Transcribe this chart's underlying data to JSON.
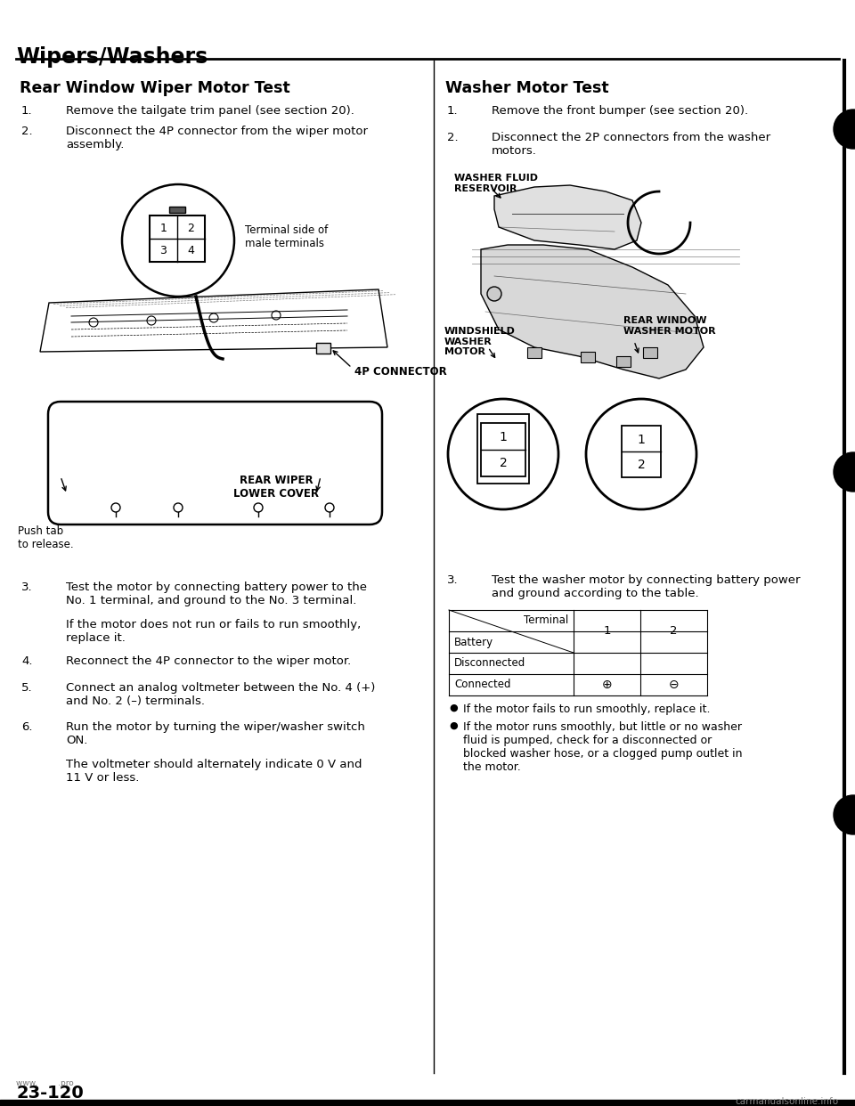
{
  "page_title": "Wipers/Washers",
  "left_section_title": "Rear Window Wiper Motor Test",
  "right_section_title": "Washer Motor Test",
  "left_step1": "Remove the tailgate trim panel (see section 20).",
  "left_step2_line1": "Disconnect the 4P connector from the wiper motor",
  "left_step2_line2": "assembly.",
  "left_step3_line1": "Test the motor by connecting battery power to the",
  "left_step3_line2": "No. 1 terminal, and ground to the No. 3 terminal.",
  "left_step3b_line1": "If the motor does not run or fails to run smoothly,",
  "left_step3b_line2": "replace it.",
  "left_step4": "Reconnect the 4P connector to the wiper motor.",
  "left_step5_line1": "Connect an analog voltmeter between the No. 4 (+)",
  "left_step5_line2": "and No. 2 (–) terminals.",
  "left_step6_line1": "Run the motor by turning the wiper/washer switch",
  "left_step6_line2": "ON.",
  "left_step6b_line1": "The voltmeter should alternately indicate 0 V and",
  "left_step6b_line2": "11 V or less.",
  "right_step1": "Remove the front bumper (see section 20).",
  "right_step2_line1": "Disconnect the 2P connectors from the washer",
  "right_step2_line2": "motors.",
  "right_step3_line1": "Test the washer motor by connecting battery power",
  "right_step3_line2": "and ground according to the table.",
  "terminal_label": "Terminal side of\nmale terminals",
  "label_4p_connector": "4P CONNECTOR",
  "label_rear_wiper": "REAR WIPER\nLOWER COVER",
  "label_push_tab": "Push tab\nto release.",
  "label_washer_fluid": "WASHER FLUID\nRESERVOIR",
  "label_windshield": "WINDSHIELD\nWASHER\nMOTOR",
  "label_rear_window": "REAR WINDOW\nWASHER MOTOR",
  "bullet1": "If the motor fails to run smoothly, replace it.",
  "bullet2_line1": "If the motor runs smoothly, but little or no washer",
  "bullet2_line2": "fluid is pumped, check for a disconnected or",
  "bullet2_line3": "blocked washer hose, or a clogged pump outlet in",
  "bullet2_line4": "the motor.",
  "page_number": "23-120",
  "watermark": "carmanualsonline.info",
  "bg_color": "#ffffff",
  "text_color": "#000000"
}
